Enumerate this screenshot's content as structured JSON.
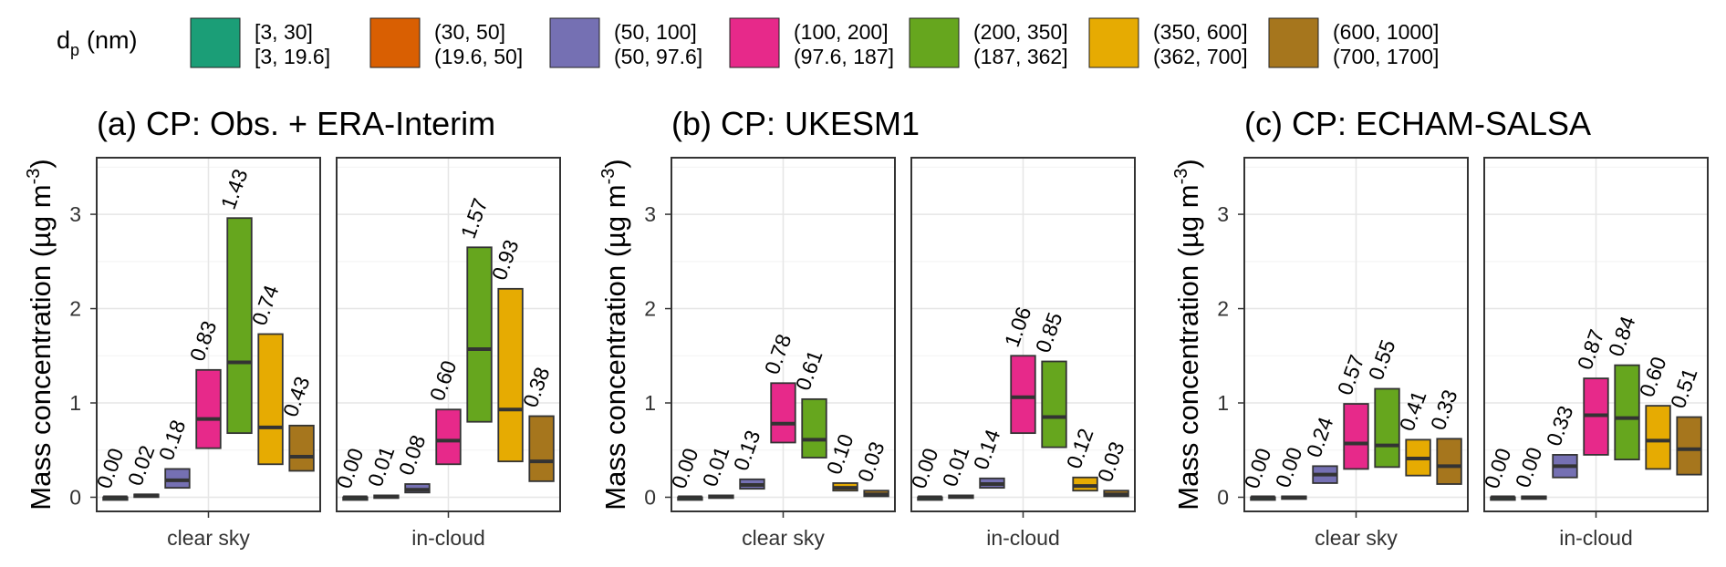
{
  "legend": {
    "title": "d",
    "title_sub": "p",
    "title_unit": "(nm)",
    "items": [
      {
        "line1": "[3, 30]",
        "line2": "[3, 19.6]",
        "color": "#1b9e77"
      },
      {
        "line1": "(30, 50]",
        "line2": "(19.6, 50]",
        "color": "#d95f02"
      },
      {
        "line1": "(50, 100]",
        "line2": "(50, 97.6]",
        "color": "#7570b3"
      },
      {
        "line1": "(100, 200]",
        "line2": "(97.6, 187]",
        "color": "#e7298a"
      },
      {
        "line1": "(200, 350]",
        "line2": "(187, 362]",
        "color": "#66a61e"
      },
      {
        "line1": "(350, 600]",
        "line2": "(362, 700]",
        "color": "#e6ab02"
      },
      {
        "line1": "(600, 1000]",
        "line2": "(700, 1700]",
        "color": "#a6761d"
      }
    ]
  },
  "chart_data": [
    {
      "type": "box",
      "title": "(a) CP: Obs. + ERA-Interim",
      "ylabel": "Mass  concentration (µg m",
      "ylabel_sup": "-3",
      "ylabel_close": ")",
      "ylim": [
        -0.15,
        3.6
      ],
      "yticks": [
        "0",
        "1",
        "2",
        "3"
      ],
      "grid": true,
      "facets": [
        {
          "label": "clear sky",
          "boxes": [
            {
              "median": 0.0,
              "q1": 0.0,
              "q3": 0.0,
              "label": "0.00"
            },
            {
              "median": 0.02,
              "q1": 0.01,
              "q3": 0.03,
              "label": "0.02"
            },
            {
              "median": 0.18,
              "q1": 0.1,
              "q3": 0.3,
              "label": "0.18"
            },
            {
              "median": 0.83,
              "q1": 0.52,
              "q3": 1.35,
              "label": "0.83"
            },
            {
              "median": 1.43,
              "q1": 0.68,
              "q3": 2.96,
              "label": "1.43"
            },
            {
              "median": 0.74,
              "q1": 0.35,
              "q3": 1.73,
              "label": "0.74"
            },
            {
              "median": 0.43,
              "q1": 0.28,
              "q3": 0.76,
              "label": "0.43"
            }
          ]
        },
        {
          "label": "in-cloud",
          "boxes": [
            {
              "median": 0.0,
              "q1": 0.0,
              "q3": 0.0,
              "label": "0.00"
            },
            {
              "median": 0.01,
              "q1": 0.0,
              "q3": 0.02,
              "label": "0.01"
            },
            {
              "median": 0.08,
              "q1": 0.05,
              "q3": 0.14,
              "label": "0.08"
            },
            {
              "median": 0.6,
              "q1": 0.35,
              "q3": 0.93,
              "label": "0.60"
            },
            {
              "median": 1.57,
              "q1": 0.8,
              "q3": 2.65,
              "label": "1.57"
            },
            {
              "median": 0.93,
              "q1": 0.38,
              "q3": 2.21,
              "label": "0.93"
            },
            {
              "median": 0.38,
              "q1": 0.17,
              "q3": 0.86,
              "label": "0.38"
            }
          ]
        }
      ]
    },
    {
      "type": "box",
      "title": "(b) CP: UKESM1",
      "ylabel": "Mass  concentration (µg m",
      "ylabel_sup": "-3",
      "ylabel_close": ")",
      "ylim": [
        -0.15,
        3.6
      ],
      "yticks": [
        "0",
        "1",
        "2",
        "3"
      ],
      "grid": true,
      "facets": [
        {
          "label": "clear sky",
          "boxes": [
            {
              "median": 0.0,
              "q1": 0.0,
              "q3": 0.0,
              "label": "0.00"
            },
            {
              "median": 0.01,
              "q1": 0.0,
              "q3": 0.02,
              "label": "0.01"
            },
            {
              "median": 0.13,
              "q1": 0.09,
              "q3": 0.19,
              "label": "0.13"
            },
            {
              "median": 0.78,
              "q1": 0.58,
              "q3": 1.21,
              "label": "0.78"
            },
            {
              "median": 0.61,
              "q1": 0.42,
              "q3": 1.04,
              "label": "0.61"
            },
            {
              "median": 0.1,
              "q1": 0.07,
              "q3": 0.15,
              "label": "0.10"
            },
            {
              "median": 0.03,
              "q1": 0.01,
              "q3": 0.07,
              "label": "0.03"
            }
          ]
        },
        {
          "label": "in-cloud",
          "boxes": [
            {
              "median": 0.0,
              "q1": 0.0,
              "q3": 0.0,
              "label": "0.00"
            },
            {
              "median": 0.01,
              "q1": 0.0,
              "q3": 0.02,
              "label": "0.01"
            },
            {
              "median": 0.14,
              "q1": 0.1,
              "q3": 0.2,
              "label": "0.14"
            },
            {
              "median": 1.06,
              "q1": 0.68,
              "q3": 1.5,
              "label": "1.06"
            },
            {
              "median": 0.85,
              "q1": 0.53,
              "q3": 1.44,
              "label": "0.85"
            },
            {
              "median": 0.12,
              "q1": 0.07,
              "q3": 0.21,
              "label": "0.12"
            },
            {
              "median": 0.03,
              "q1": 0.01,
              "q3": 0.07,
              "label": "0.03"
            }
          ]
        }
      ]
    },
    {
      "type": "box",
      "title": "(c) CP: ECHAM-SALSA",
      "ylabel": "Mass  concentration (µg m",
      "ylabel_sup": "-3",
      "ylabel_close": ")",
      "ylim": [
        -0.15,
        3.6
      ],
      "yticks": [
        "0",
        "1",
        "2",
        "3"
      ],
      "grid": true,
      "facets": [
        {
          "label": "clear sky",
          "boxes": [
            {
              "median": 0.0,
              "q1": 0.0,
              "q3": 0.0,
              "label": "0.00"
            },
            {
              "median": 0.0,
              "q1": 0.0,
              "q3": 0.01,
              "label": "0.00"
            },
            {
              "median": 0.24,
              "q1": 0.15,
              "q3": 0.33,
              "label": "0.24"
            },
            {
              "median": 0.57,
              "q1": 0.3,
              "q3": 0.99,
              "label": "0.57"
            },
            {
              "median": 0.55,
              "q1": 0.32,
              "q3": 1.15,
              "label": "0.55"
            },
            {
              "median": 0.41,
              "q1": 0.23,
              "q3": 0.61,
              "label": "0.41"
            },
            {
              "median": 0.33,
              "q1": 0.14,
              "q3": 0.62,
              "label": "0.33"
            }
          ]
        },
        {
          "label": "in-cloud",
          "boxes": [
            {
              "median": 0.0,
              "q1": 0.0,
              "q3": 0.0,
              "label": "0.00"
            },
            {
              "median": 0.0,
              "q1": 0.0,
              "q3": 0.01,
              "label": "0.00"
            },
            {
              "median": 0.33,
              "q1": 0.21,
              "q3": 0.45,
              "label": "0.33"
            },
            {
              "median": 0.87,
              "q1": 0.45,
              "q3": 1.26,
              "label": "0.87"
            },
            {
              "median": 0.84,
              "q1": 0.4,
              "q3": 1.4,
              "label": "0.84"
            },
            {
              "median": 0.6,
              "q1": 0.3,
              "q3": 0.97,
              "label": "0.60"
            },
            {
              "median": 0.51,
              "q1": 0.24,
              "q3": 0.85,
              "label": "0.51"
            }
          ]
        }
      ]
    }
  ]
}
